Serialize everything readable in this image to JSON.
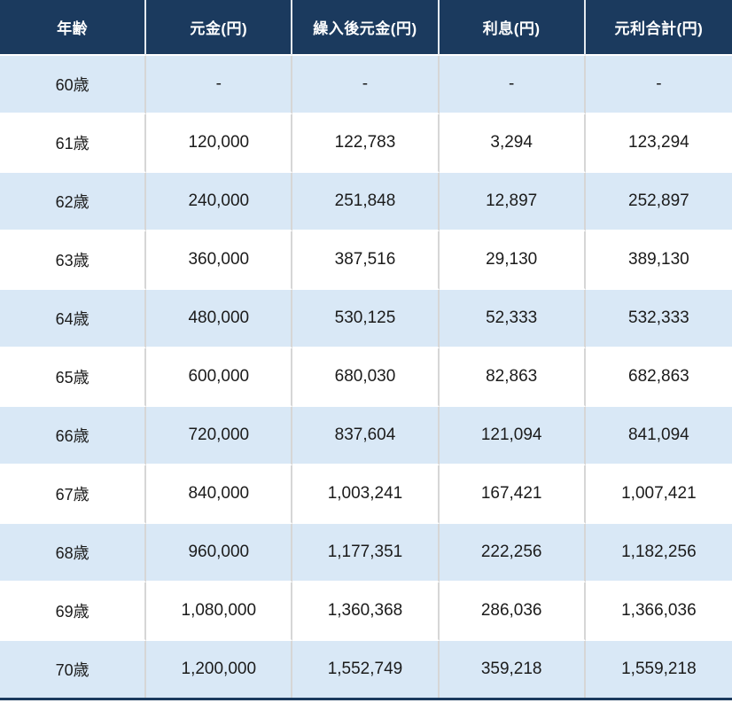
{
  "colors": {
    "header_bg": "#1b3a5e",
    "header_text": "#ffffff",
    "row_alt_bg": "#d9e8f6",
    "row_bg": "#ffffff",
    "cell_text": "#1b1b1b",
    "column_divider": "#d6d6d6",
    "row_divider": "#ffffff",
    "table_bottom_border": "#1b3a5e"
  },
  "chart_data": {
    "type": "table",
    "title": "",
    "columns": [
      "年齢",
      "元金(円)",
      "繰入後元金(円)",
      "利息(円)",
      "元利合計(円)"
    ],
    "rows": [
      [
        "60歳",
        "-",
        "-",
        "-",
        "-"
      ],
      [
        "61歳",
        "120,000",
        "122,783",
        "3,294",
        "123,294"
      ],
      [
        "62歳",
        "240,000",
        "251,848",
        "12,897",
        "252,897"
      ],
      [
        "63歳",
        "360,000",
        "387,516",
        "29,130",
        "389,130"
      ],
      [
        "64歳",
        "480,000",
        "530,125",
        "52,333",
        "532,333"
      ],
      [
        "65歳",
        "600,000",
        "680,030",
        "82,863",
        "682,863"
      ],
      [
        "66歳",
        "720,000",
        "837,604",
        "121,094",
        "841,094"
      ],
      [
        "67歳",
        "840,000",
        "1,003,241",
        "167,421",
        "1,007,421"
      ],
      [
        "68歳",
        "960,000",
        "1,177,351",
        "222,256",
        "1,182,256"
      ],
      [
        "69歳",
        "1,080,000",
        "1,360,368",
        "286,036",
        "1,366,036"
      ],
      [
        "70歳",
        "1,200,000",
        "1,552,749",
        "359,218",
        "1,559,218"
      ]
    ],
    "layout": {
      "header_row": true,
      "zebra_striping": true,
      "first_body_row_shaded": true,
      "all_cells_centered": true
    }
  }
}
